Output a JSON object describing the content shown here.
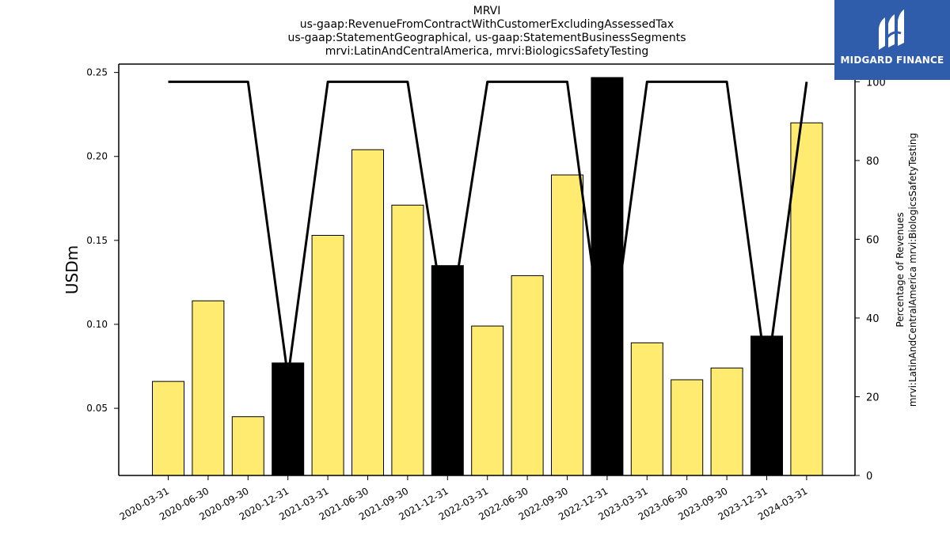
{
  "header": {
    "title_lines": [
      "MRVI",
      "us-gaap:RevenueFromContractWithCustomerExcludingAssessedTax",
      "us-gaap:StatementGeographical, us-gaap:StatementBusinessSegments",
      "mrvi:LatinAndCentralAmerica, mrvi:BiologicsSafetyTesting"
    ]
  },
  "logo": {
    "text": "MIDGARD FINANCE",
    "background": "#2f5cab"
  },
  "chart_data": {
    "type": "bar",
    "categories": [
      "2020-03-31",
      "2020-06-30",
      "2020-09-30",
      "2020-12-31",
      "2021-03-31",
      "2021-06-30",
      "2021-09-30",
      "2021-12-31",
      "2022-03-31",
      "2022-06-30",
      "2022-09-30",
      "2022-12-31",
      "2023-03-31",
      "2023-06-30",
      "2023-09-30",
      "2023-12-31",
      "2024-03-31"
    ],
    "series": [
      {
        "type": "bar",
        "axis": "left",
        "values": [
          0.066,
          0.114,
          0.045,
          0.077,
          0.153,
          0.204,
          0.171,
          0.135,
          0.099,
          0.129,
          0.189,
          0.247,
          0.089,
          0.067,
          0.074,
          0.093,
          0.22
        ],
        "highlight": [
          false,
          false,
          false,
          true,
          false,
          false,
          false,
          true,
          false,
          false,
          false,
          true,
          false,
          false,
          false,
          true,
          false
        ]
      },
      {
        "type": "line",
        "axis": "right",
        "values": [
          100,
          100,
          100,
          25,
          100,
          100,
          100,
          35,
          100,
          100,
          100,
          25,
          100,
          100,
          100,
          25,
          100
        ]
      }
    ],
    "ylabel": "USDm",
    "y2label_lines": [
      "Percentage of Revenues",
      "mrvi:LatinAndCentralAmerica mrvi:BiologicsSafetyTesting"
    ],
    "ylim": [
      0.01,
      0.255
    ],
    "y2lim": [
      0,
      104.5
    ],
    "yticks": [
      "0.05",
      "0.10",
      "0.15",
      "0.20",
      "0.25"
    ],
    "ytick_values": [
      0.05,
      0.1,
      0.15,
      0.2,
      0.25
    ],
    "y2ticks": [
      "0",
      "20",
      "40",
      "60",
      "80",
      "100"
    ],
    "y2tick_values": [
      0,
      20,
      40,
      60,
      80,
      100
    ],
    "colors": {
      "bar": "#ffeb70",
      "bar_highlight": "#000000",
      "line": "#000000"
    },
    "grid": false
  }
}
